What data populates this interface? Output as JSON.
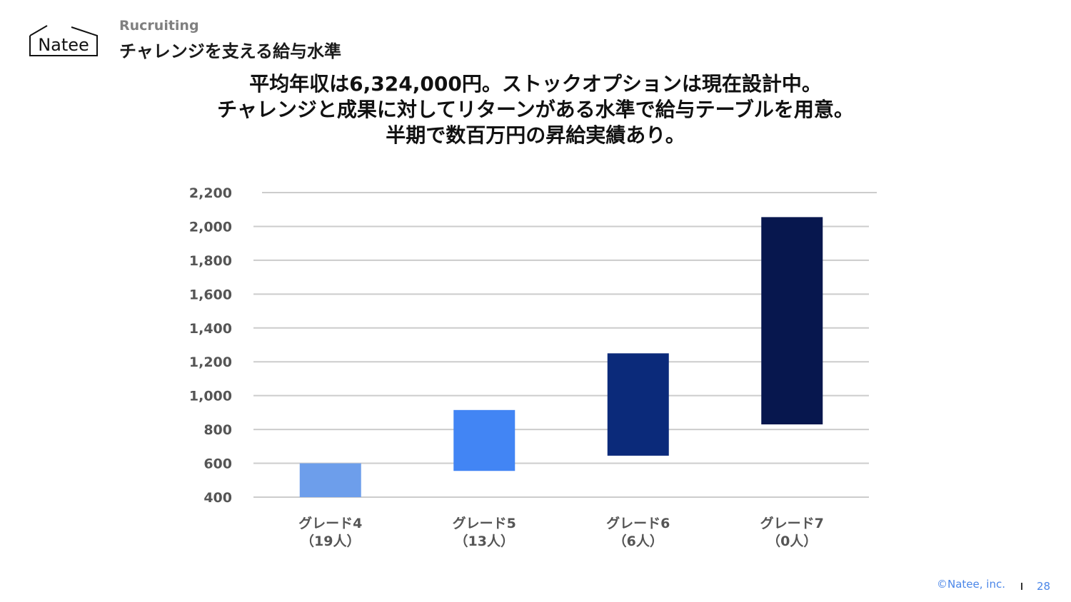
{
  "header": {
    "logo_text": "Natee",
    "section_label": "Rucruiting",
    "page_title": "チャレンジを支える給与水準"
  },
  "headline": [
    "平均年収は6,324,000円。ストックオプションは現在設計中。",
    "チャレンジと成果に対してリターンがある水準で給与テーブルを用意。",
    "半期で数百万円の昇給実績あり。"
  ],
  "chart_data": {
    "type": "bar",
    "subtype": "floating-range",
    "categories": [
      "グレード4",
      "グレード5",
      "グレード6",
      "グレード7"
    ],
    "category_sublabels": [
      "（19人）",
      "（13人）",
      "（6人）",
      "（0人）"
    ],
    "ranges": [
      {
        "low": 400,
        "high": 600,
        "color": "#6d9eeb"
      },
      {
        "low": 555,
        "high": 915,
        "color": "#4285f4"
      },
      {
        "low": 645,
        "high": 1250,
        "color": "#0b2a7a"
      },
      {
        "low": 830,
        "high": 2055,
        "color": "#07174e"
      }
    ],
    "yticks": [
      "400",
      "600",
      "800",
      "1,000",
      "1,200",
      "1,400",
      "1,600",
      "1,800",
      "2,000",
      "2,200"
    ],
    "ylim": [
      400,
      2200
    ],
    "grid": true,
    "legend": "none",
    "title": "",
    "xlabel": "",
    "ylabel": ""
  },
  "footer": {
    "copyright": "©Natee, inc.",
    "page_number": "28"
  }
}
